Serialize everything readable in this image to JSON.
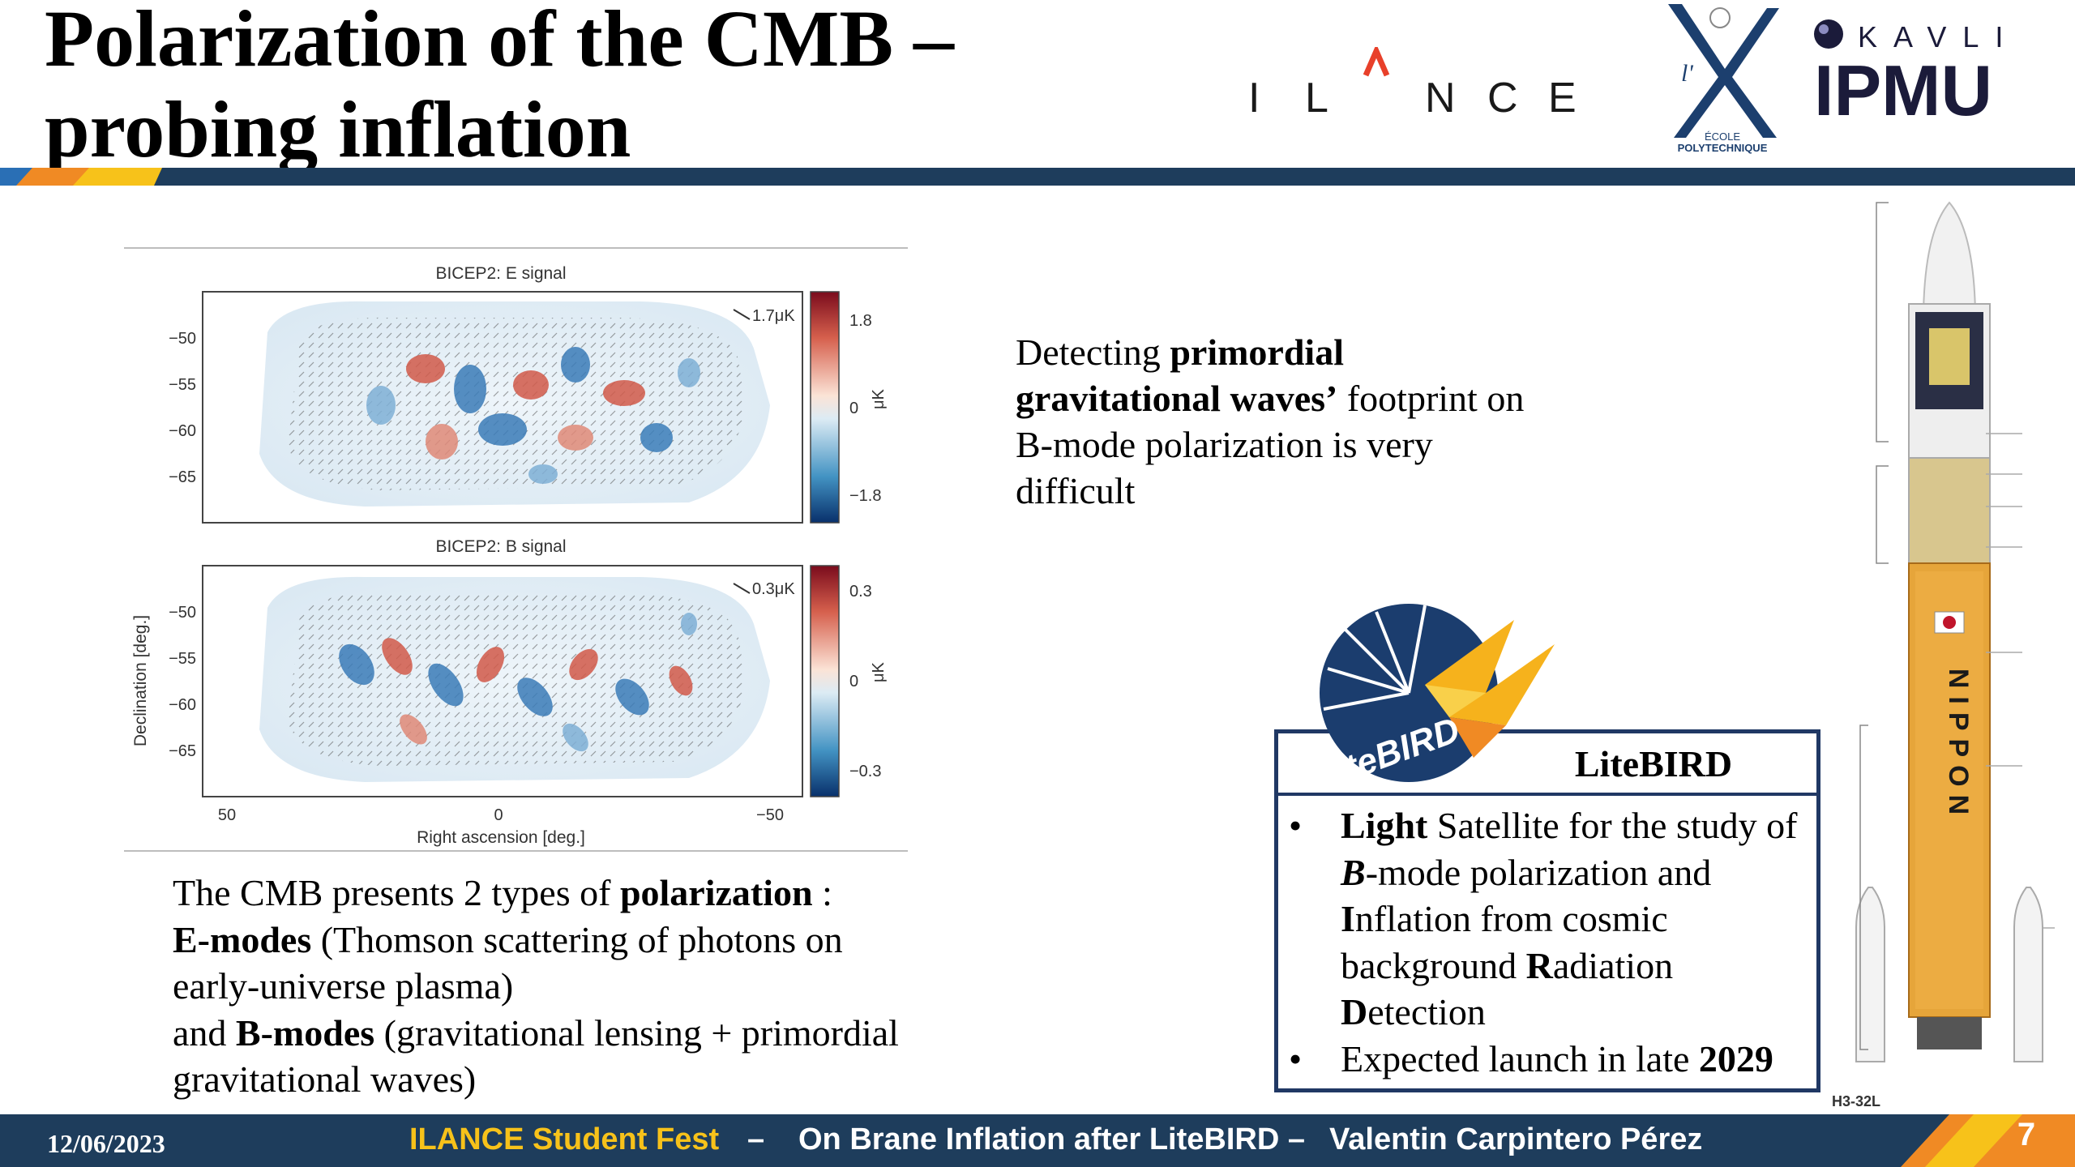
{
  "title": {
    "line1": "Polarization of the CMB –",
    "line2": "probing inflation"
  },
  "logos": {
    "ilance": "ILANCE",
    "polytechnique_top": "l'X",
    "polytechnique_caption_1": "ÉCOLE",
    "polytechnique_caption_2": "POLYTECHNIQUE",
    "kavli_top": "KAVLI",
    "kavli_bottom": "IPMU"
  },
  "figure": {
    "panel_e": {
      "title": "BICEP2: E signal",
      "scale_label": "1.7μK",
      "colorbar_ticks": [
        "1.8",
        "0",
        "−1.8"
      ],
      "colorbar_unit": "μK",
      "y_ticks": [
        "−50",
        "−55",
        "−60",
        "−65"
      ]
    },
    "panel_b": {
      "title": "BICEP2: B signal",
      "scale_label": "0.3μK",
      "colorbar_ticks": [
        "0.3",
        "0",
        "−0.3"
      ],
      "colorbar_unit": "μK",
      "y_ticks": [
        "−50",
        "−55",
        "−60",
        "−65"
      ]
    },
    "x_ticks": [
      "50",
      "0",
      "−50"
    ],
    "xlabel": "Right ascension [deg.]",
    "ylabel": "Declination [deg.]"
  },
  "cmb_text": {
    "p1_a": "The CMB presents 2 types of ",
    "p1_b": "polarization",
    "p1_c": " :",
    "p2_a": "E-modes",
    "p2_b": " (Thomson scattering of photons on early-universe plasma)",
    "p3_a": "and ",
    "p3_b": "B-modes",
    "p3_c": " (gravitational lensing + primordial gravitational waves)"
  },
  "detect_text": {
    "a": "Detecting ",
    "b": "primordial gravitational waves’",
    "c": " footprint on B-mode polarization is very difficult"
  },
  "litebird": {
    "logo_text": "LiteBIRD",
    "title": "LiteBIRD",
    "bullet": "•",
    "item1": {
      "l1": "Light",
      "t1": " Satellite for the study of ",
      "b": "B",
      "t2": "-mode polarization and ",
      "i": "I",
      "t3": "nflation from cosmic background ",
      "r": "R",
      "t4": "adiation ",
      "d": "D",
      "t5": "etection"
    },
    "item2": {
      "t": "Expected launch in late ",
      "year": "2029"
    }
  },
  "rocket": {
    "model": "H3-32L",
    "body_text": "NIPPON"
  },
  "footer": {
    "date": "12/06/2023",
    "event": "ILANCE Student Fest",
    "sep": "–",
    "talk": "On Brane Inflation after LiteBIRD –",
    "author": "Valentin Carpintero Pérez",
    "page": "7"
  },
  "colors": {
    "navy": "#1e3d5c",
    "box_border": "#203864",
    "footer_event": "#f7c21a",
    "accent_orange": "#f08a24"
  }
}
